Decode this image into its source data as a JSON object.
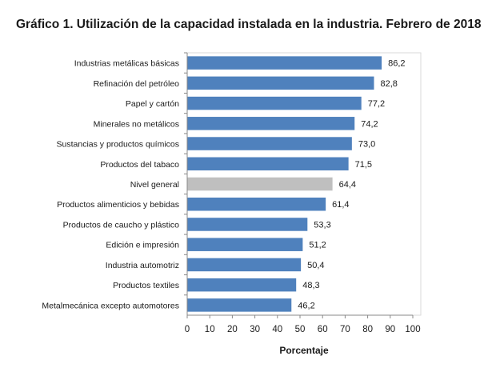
{
  "chart_data": {
    "type": "bar",
    "orientation": "horizontal",
    "title": "Gráfico 1. Utilización de la capacidad instalada en la industria. Febrero de 2018",
    "xlabel": "Porcentaje",
    "ylabel": "",
    "xlim": [
      0,
      100
    ],
    "xticks": [
      0,
      10,
      20,
      30,
      40,
      50,
      60,
      70,
      80,
      90,
      100
    ],
    "grid": false,
    "categories": [
      "Industrias metálicas básicas",
      "Refinación del petróleo",
      "Papel y cartón",
      "Minerales no metálicos",
      "Sustancias y productos químicos",
      "Productos del tabaco",
      "Nivel general",
      "Productos alimenticios y bebidas",
      "Productos de caucho y plástico",
      "Edición e impresión",
      "Industria automotriz",
      "Productos textiles",
      "Metalmecánica excepto automotores"
    ],
    "values": [
      86.2,
      82.8,
      77.2,
      74.2,
      73.0,
      71.5,
      64.4,
      61.4,
      53.3,
      51.2,
      50.4,
      48.3,
      46.2
    ],
    "value_labels": [
      "86,2",
      "82,8",
      "77,2",
      "74,2",
      "73,0",
      "71,5",
      "64,4",
      "61,4",
      "53,3",
      "51,2",
      "50,4",
      "48,3",
      "46,2"
    ],
    "highlight_category": "Nivel general",
    "colors": {
      "bar": "#4f81bd",
      "highlight": "#bfbfbf",
      "frame": "#d9d9d9"
    }
  }
}
